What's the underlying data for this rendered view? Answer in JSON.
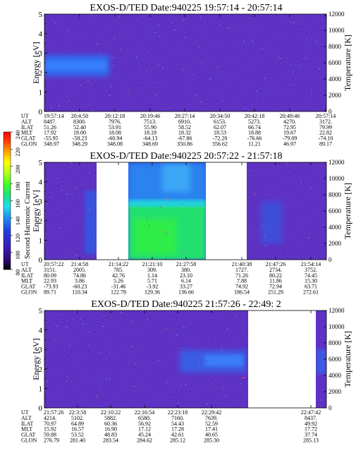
{
  "chart_data": [
    {
      "type": "heatmap",
      "title": "EXOS-D/TED Date:940225 19:57:14 - 20:57:14",
      "ylabel": "Energy [eV]",
      "y2label": "Temperature [K]",
      "ylim": [
        0,
        5
      ],
      "y2lim": [
        0,
        12000
      ],
      "yticks": [
        "0",
        "1",
        "2",
        "3",
        "4",
        "5"
      ],
      "y2ticks": [
        "0",
        "2000",
        "4000",
        "6000",
        "8000",
        "10000",
        "12000"
      ],
      "rows": [
        "UT",
        "ALT",
        "ILAT",
        "MLT",
        "GLAT",
        "GLON"
      ],
      "columns": [
        [
          "19:57:14",
          "8487.",
          "51.26",
          "17.92",
          "-55.95",
          "348.97"
        ],
        [
          "20:4:50",
          "8300.",
          "52.40",
          "18.00",
          "-58.23",
          "348.29"
        ],
        [
          "20:12:18",
          "7976.",
          "53.91",
          "18.08",
          "-60.94",
          "348.08"
        ],
        [
          "20:19:46",
          "7513.",
          "55.90",
          "18.18",
          "-64.13",
          "348.69"
        ],
        [
          "20:27:14",
          "6910.",
          "58.52",
          "18.32",
          "-67.86",
          "350.86"
        ],
        [
          "20:34:50",
          "6153.",
          "62.07",
          "18.53",
          "-72.20",
          "356.62"
        ],
        [
          "20:42:18",
          "5273.",
          "66.74",
          "18.88",
          "-76.66",
          "11.21"
        ],
        [
          "20:49:46",
          "4270.",
          "72.95",
          "19.67",
          "-79.09",
          "46.97"
        ],
        [
          "20:57:14",
          "3172.",
          "79.99",
          "22.82",
          "-74.10",
          "89.17"
        ]
      ],
      "features": [
        {
          "description": "cyan/blue band",
          "x_range": [
            "19:57:14",
            "20:10"
          ],
          "energy_range": [
            1.8,
            3.0
          ]
        }
      ]
    },
    {
      "type": "heatmap",
      "title": "EXOS-D/TED Date:940225 20:57:22 - 21:57:18",
      "ylabel": "Energy [eV]",
      "y2label": "Temperature [K]",
      "ylim": [
        0,
        5
      ],
      "y2lim": [
        0,
        12000
      ],
      "yticks": [
        "0",
        "1",
        "2",
        "3",
        "4",
        "5"
      ],
      "y2ticks": [
        "0",
        "2000",
        "4000",
        "6000",
        "8000",
        "10000",
        "12000"
      ],
      "colorbar": {
        "label": "Second Harmonic Current",
        "ticks": [
          "80",
          "100",
          "120",
          "140",
          "160",
          "180",
          "200",
          "220",
          "240"
        ],
        "colors": [
          "#000000",
          "#2a0a6a",
          "#3a1ab0",
          "#2040e0",
          "#2090f0",
          "#20e0f0",
          "#20e080",
          "#40ff20",
          "#b0ff20",
          "#ffff00",
          "#ffa000",
          "#ff4000",
          "#ff0000"
        ]
      },
      "rows": [
        "UT",
        "ALT",
        "ILAT",
        "MLT",
        "GLAT",
        "GLON"
      ],
      "columns": [
        [
          "20:57:22",
          "3151.",
          "80.09",
          "22.93",
          "-73.93",
          "89.71"
        ],
        [
          "21:4:58",
          "2005.",
          "74.86",
          "3.86",
          "-60.23",
          "110.34"
        ],
        [
          "21:14:22",
          "785.",
          "42.76",
          "5.26",
          "-31.46",
          "122.78"
        ],
        [
          "21:21:10",
          "309.",
          "1.14",
          "5.71",
          "-3.92",
          "129.36"
        ],
        [
          "21:27:58",
          "380.",
          "23.10",
          "6.14",
          "33.27",
          "136.66"
        ],
        [
          "21:40:38",
          "1727.",
          "71.26",
          "7.88",
          "74.92",
          "186.54"
        ],
        [
          "21:47:26",
          "2734.",
          "80.22",
          "11.86",
          "72.94",
          "251.29"
        ],
        [
          "21:54:14",
          "3752.",
          "74.45",
          "15.30",
          "63.71",
          "272.61"
        ]
      ],
      "data_gaps": [
        [
          "21:6",
          "21:13"
        ],
        [
          "21:32",
          "21:38"
        ]
      ],
      "features": [
        {
          "description": "intense green region",
          "x_range": [
            "21:14:22",
            "21:30"
          ],
          "energy_range": [
            0,
            3.0
          ]
        }
      ]
    },
    {
      "type": "heatmap",
      "title": "EXOS-D/TED Date:940225 21:57:26 - 22:49: 2",
      "ylabel": "Energy [eV]",
      "y2label": "Temperature [K]",
      "ylim": [
        0,
        5
      ],
      "y2lim": [
        0,
        12000
      ],
      "yticks": [
        "0",
        "1",
        "2",
        "3",
        "4",
        "5"
      ],
      "y2ticks": [
        "0",
        "2000",
        "4000",
        "6000",
        "8000",
        "10000",
        "12000"
      ],
      "rows": [
        "UT",
        "ALT",
        "ILAT",
        "MLT",
        "GLAT",
        "GLON"
      ],
      "columns": [
        [
          "21:57:26",
          "4214.",
          "70.97",
          "15.92",
          "59.88",
          "276.79"
        ],
        [
          "22:3:58",
          "5102.",
          "64.89",
          "16.57",
          "53.52",
          "281.40"
        ],
        [
          "22:10:22",
          "5882.",
          "60.36",
          "16.90",
          "48.83",
          "283.54"
        ],
        [
          "22:16:54",
          "6580.",
          "56.92",
          "17.12",
          "45.24",
          "284.62"
        ],
        [
          "22:23:18",
          "7160.",
          "54.43",
          "17.28",
          "42.61",
          "285.12"
        ],
        [
          "22:29:42",
          "7639.",
          "52.59",
          "17.41",
          "40.65",
          "285.30"
        ],
        [
          "22:47:42",
          "8437.",
          "49.92",
          "17.72",
          "37.74",
          "285.13"
        ]
      ],
      "data_gaps": [
        [
          "22:33",
          "22:47"
        ]
      ],
      "features": [
        {
          "description": "blue band",
          "x_range": [
            "22:20",
            "22:33"
          ],
          "energy_range": [
            1.8,
            2.8
          ]
        }
      ]
    }
  ]
}
